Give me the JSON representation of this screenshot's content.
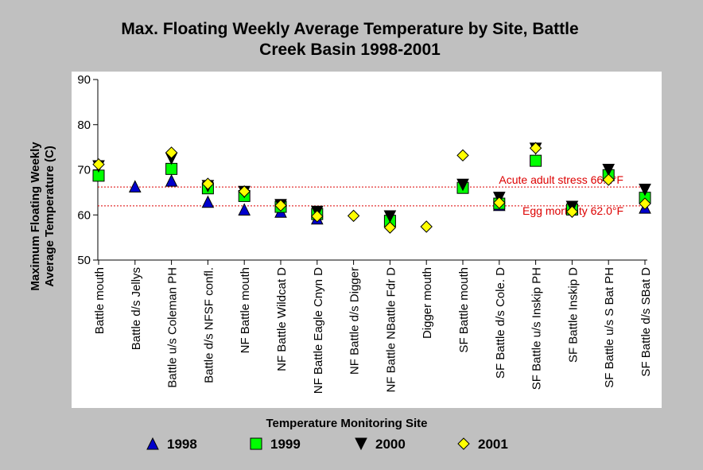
{
  "chart_data": {
    "type": "scatter",
    "title_line1": "Max. Floating Weekly Average Temperature by Site, Battle",
    "title_line2": "Creek Basin 1998-2001",
    "xlabel": "Temperature Monitoring Site",
    "ylabel_line1": "Maximum Floating Weekly",
    "ylabel_line2": "Average Temperature (C)",
    "ylim": [
      50,
      90
    ],
    "yticks": [
      "50",
      "60",
      "70",
      "80",
      "90"
    ],
    "grid": false,
    "legend_position": "bottom",
    "categories": [
      "Battle mouth",
      "Battle d/s Jellys",
      "Battle u/s Coleman PH",
      "Battle d/s NFSF confl.",
      "NF Battle mouth",
      "NF Battle Wildcat D",
      "NF Battle Eagle Cnyn D",
      "NF Battle d/s Digger",
      "NF Battle NBattle Fdr D",
      "Digger mouth",
      "SF Battle mouth",
      "SF Battle d/s Cole. D",
      "SF Battle u/s Inskip PH",
      "SF Battle Inskip D",
      "SF Battle u/s S Bat PH",
      "SF Battle d/s SBat D"
    ],
    "series": [
      {
        "name": "1998",
        "marker": "triangle-up",
        "color": "#0000cc",
        "values": [
          null,
          66.3,
          67.6,
          62.9,
          61.2,
          60.7,
          59.2,
          null,
          58.7,
          null,
          null,
          62.2,
          null,
          61.6,
          69.5,
          61.6
        ]
      },
      {
        "name": "1999",
        "marker": "square",
        "color": "#00ff00",
        "values": [
          68.7,
          null,
          70.2,
          65.9,
          64.2,
          61.8,
          60.2,
          null,
          58.7,
          null,
          66.0,
          62.5,
          72.0,
          61.2,
          68.8,
          63.8
        ]
      },
      {
        "name": "2000",
        "marker": "triangle-down",
        "color": "#000000",
        "values": [
          70.8,
          null,
          72.5,
          66.4,
          65.1,
          62.2,
          60.7,
          null,
          59.7,
          null,
          66.7,
          63.8,
          74.7,
          61.8,
          70.0,
          65.6
        ]
      },
      {
        "name": "2001",
        "marker": "diamond",
        "color": "#ffff00",
        "values": [
          71.2,
          null,
          73.8,
          66.9,
          65.2,
          62.1,
          59.7,
          59.8,
          57.2,
          57.4,
          73.2,
          62.7,
          74.8,
          60.7,
          67.8,
          62.5
        ]
      }
    ],
    "reference_lines": [
      {
        "label": "Acute adult stress 66.2°F",
        "value": 66.2,
        "color": "#dd0000"
      },
      {
        "label": "Egg mortality 62.0°F",
        "value": 62.0,
        "color": "#dd0000"
      }
    ]
  }
}
